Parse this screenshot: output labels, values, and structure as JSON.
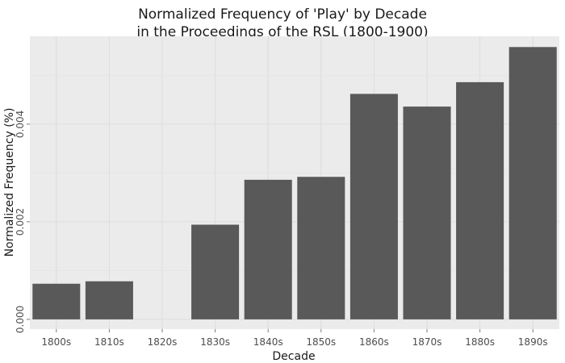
{
  "chart_data": {
    "type": "bar",
    "title_line1": "Normalized Frequency of 'Play' by Decade",
    "title_line2": "in the Proceedings of the RSL (1800-1900)",
    "xlabel": "Decade",
    "ylabel": "Normalized Frequency (%)",
    "categories": [
      "1800s",
      "1810s",
      "1820s",
      "1830s",
      "1840s",
      "1850s",
      "1860s",
      "1870s",
      "1880s",
      "1890s"
    ],
    "values": [
      0.00073,
      0.00078,
      0,
      0.00194,
      0.00286,
      0.00292,
      0.00462,
      0.00436,
      0.00486,
      0.00558
    ],
    "y_ticks": [
      "0.000",
      "0.002",
      "0.004"
    ],
    "y_tick_values": [
      0,
      0.002,
      0.004
    ],
    "ylim": [
      -0.0002,
      0.0058
    ],
    "grid": true,
    "bar_color": "#595959",
    "panel_background": "#ebebeb"
  }
}
